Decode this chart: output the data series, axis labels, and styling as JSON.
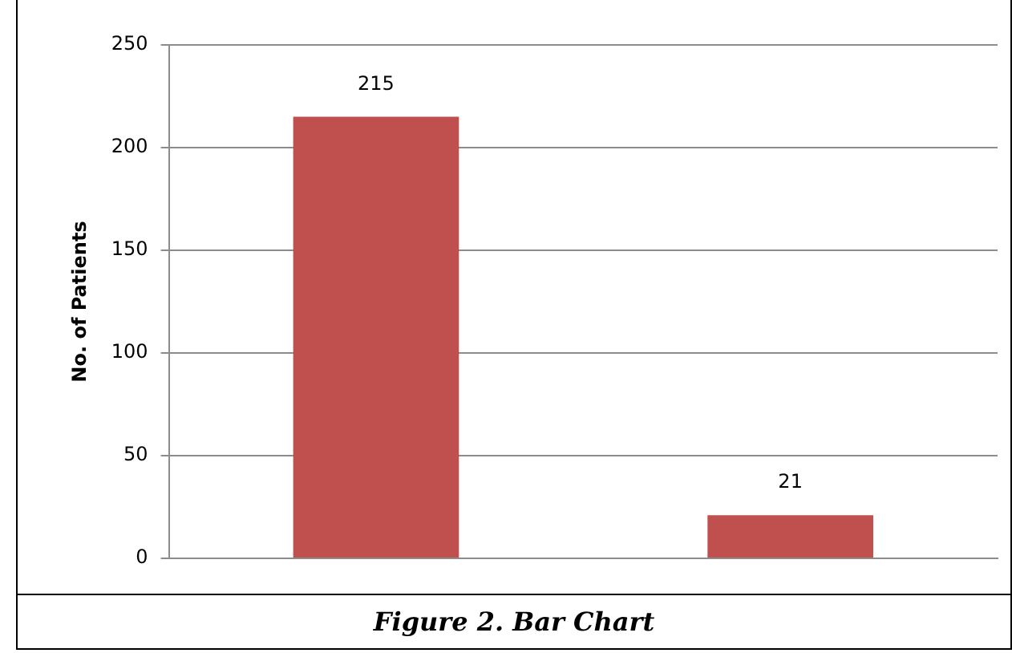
{
  "chart_data": {
    "type": "bar",
    "categories": [
      null,
      null
    ],
    "values": [
      215,
      21
    ],
    "color": "#c0504d",
    "ylabel": "No. of Patients",
    "ylim": [
      0,
      250
    ],
    "yticks": [
      0,
      50,
      100,
      150,
      200,
      250
    ],
    "grid": "y",
    "legend": false,
    "data_labels": true,
    "annotations": [
      "Figure 2. Bar Chart"
    ]
  }
}
